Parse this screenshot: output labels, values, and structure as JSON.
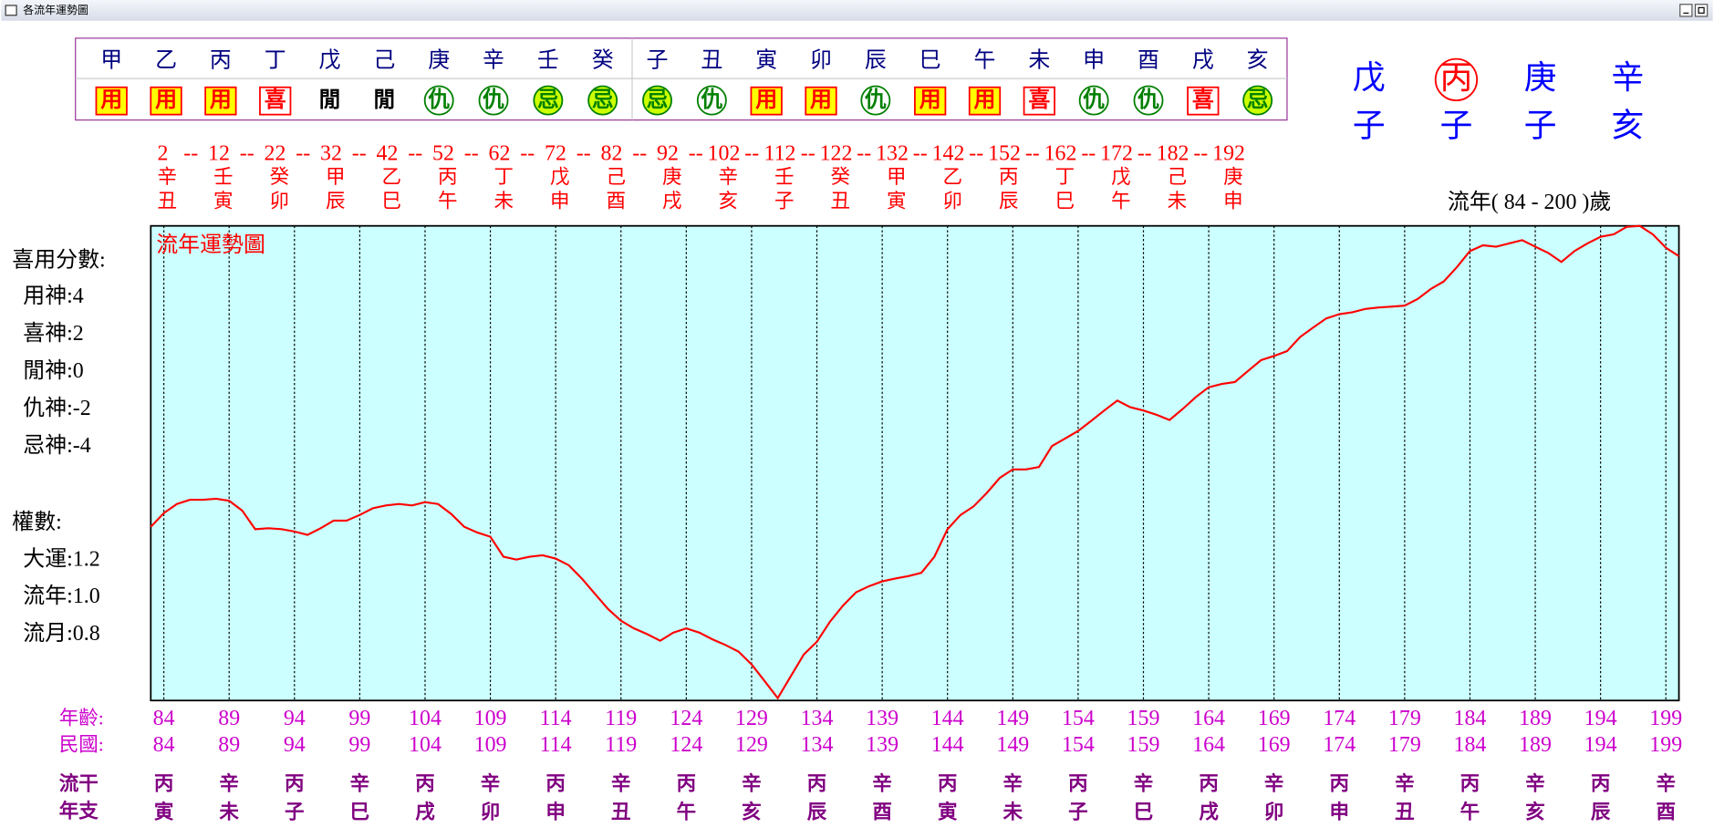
{
  "window": {
    "title": "各流年運勢圖"
  },
  "elements": {
    "items": [
      {
        "char": "甲",
        "role": "用"
      },
      {
        "char": "乙",
        "role": "用"
      },
      {
        "char": "丙",
        "role": "用"
      },
      {
        "char": "丁",
        "role": "喜"
      },
      {
        "char": "戊",
        "role": "閒"
      },
      {
        "char": "己",
        "role": "閒"
      },
      {
        "char": "庚",
        "role": "仇"
      },
      {
        "char": "辛",
        "role": "仇"
      },
      {
        "char": "壬",
        "role": "忌"
      },
      {
        "char": "癸",
        "role": "忌"
      },
      {
        "char": "子",
        "role": "忌"
      },
      {
        "char": "丑",
        "role": "仇"
      },
      {
        "char": "寅",
        "role": "用"
      },
      {
        "char": "卯",
        "role": "用"
      },
      {
        "char": "辰",
        "role": "仇"
      },
      {
        "char": "巳",
        "role": "用"
      },
      {
        "char": "午",
        "role": "用"
      },
      {
        "char": "未",
        "role": "喜"
      },
      {
        "char": "申",
        "role": "仇"
      },
      {
        "char": "酉",
        "role": "仇"
      },
      {
        "char": "戌",
        "role": "喜"
      },
      {
        "char": "亥",
        "role": "忌"
      }
    ],
    "role_styles": {
      "用": {
        "shape": "box",
        "fill": "#ffff00",
        "stroke": "#ff0000",
        "color": "#ff0000"
      },
      "喜": {
        "shape": "box",
        "fill": "#ffffff",
        "stroke": "#ff0000",
        "color": "#ff0000"
      },
      "閒": {
        "shape": "none",
        "fill": "none",
        "stroke": "none",
        "color": "#000000"
      },
      "仇": {
        "shape": "circle",
        "fill": "#ffffff",
        "stroke": "#008000",
        "color": "#008000"
      },
      "忌": {
        "shape": "circle",
        "fill": "#ccff00",
        "stroke": "#008000",
        "color": "#008000"
      }
    }
  },
  "pillars": {
    "stems": [
      "戊",
      "丙",
      "庚",
      "辛"
    ],
    "branches": [
      "子",
      "子",
      "子",
      "亥"
    ],
    "stem_colors": [
      "#0000ff",
      "#ff0000",
      "#0000ff",
      "#0000ff"
    ],
    "circled": [
      false,
      true,
      false,
      false
    ]
  },
  "luck": {
    "separator": "--",
    "ages": [
      2,
      12,
      22,
      32,
      42,
      52,
      62,
      72,
      82,
      92,
      102,
      112,
      122,
      132,
      142,
      152,
      162,
      172,
      182,
      192
    ],
    "stems": [
      "辛",
      "壬",
      "癸",
      "甲",
      "乙",
      "丙",
      "丁",
      "戊",
      "己",
      "庚",
      "辛",
      "壬",
      "癸",
      "甲",
      "乙",
      "丙",
      "丁",
      "戊",
      "己",
      "庚"
    ],
    "branches": [
      "丑",
      "寅",
      "卯",
      "辰",
      "巳",
      "午",
      "未",
      "申",
      "酉",
      "戌",
      "亥",
      "子",
      "丑",
      "寅",
      "卯",
      "辰",
      "巳",
      "午",
      "未",
      "申"
    ]
  },
  "flow_year_range": "流年( 84 - 200 )歲",
  "legend": {
    "score_title": "喜用分數:",
    "scores": [
      "用神:4",
      "喜神:2",
      "閒神:0",
      "仇神:-2",
      "忌神:-4"
    ],
    "weight_title": "權數:",
    "weights": [
      "大運:1.2",
      "流年:1.0",
      "流月:0.8"
    ]
  },
  "chart_data": {
    "type": "line",
    "title": "流年運勢圖",
    "x": [
      83,
      84,
      85,
      86,
      87,
      88,
      89,
      90,
      91,
      92,
      93,
      94,
      95,
      96,
      97,
      98,
      99,
      100,
      101,
      102,
      103,
      104,
      105,
      106,
      107,
      108,
      109,
      110,
      111,
      112,
      113,
      114,
      115,
      116,
      117,
      118,
      119,
      120,
      121,
      122,
      123,
      124,
      125,
      126,
      127,
      128,
      129,
      130,
      131,
      132,
      133,
      134,
      135,
      136,
      137,
      138,
      139,
      140,
      141,
      142,
      143,
      144,
      145,
      146,
      147,
      148,
      149,
      150,
      151,
      152,
      153,
      154,
      155,
      156,
      157,
      158,
      159,
      160,
      161,
      162,
      163,
      164,
      165,
      166,
      167,
      168,
      169,
      170,
      171,
      172,
      173,
      174,
      175,
      176,
      177,
      178,
      179,
      180,
      181,
      182,
      183,
      184,
      185,
      186,
      187,
      188,
      189,
      190,
      191,
      192,
      193,
      194,
      195,
      196,
      197,
      198,
      199,
      200
    ],
    "series": [
      {
        "color": "#ff0000",
        "values": [
          36.6,
          39.5,
          41.4,
          42.3,
          42.3,
          42.5,
          42.1,
          40.0,
          36.1,
          36.3,
          36.1,
          35.6,
          34.9,
          36.3,
          37.9,
          37.9,
          39.1,
          40.5,
          41.1,
          41.4,
          41.1,
          41.8,
          41.4,
          39.3,
          36.6,
          35.4,
          34.5,
          30.3,
          29.7,
          30.3,
          30.6,
          29.9,
          28.5,
          25.7,
          22.5,
          19.3,
          16.8,
          15.2,
          14.0,
          12.6,
          14.3,
          15.2,
          14.3,
          12.9,
          11.7,
          10.3,
          7.6,
          4.1,
          0.5,
          5.1,
          9.7,
          12.4,
          16.6,
          20.0,
          22.8,
          24.1,
          25.1,
          25.7,
          26.2,
          26.9,
          30.3,
          36.1,
          39.1,
          40.9,
          43.7,
          46.9,
          48.7,
          48.7,
          49.2,
          53.6,
          55.2,
          56.8,
          58.9,
          61.1,
          63.2,
          61.8,
          61.1,
          60.2,
          59.1,
          61.4,
          63.9,
          66.0,
          66.7,
          67.1,
          69.4,
          71.7,
          72.6,
          73.6,
          76.6,
          78.6,
          80.5,
          81.4,
          81.8,
          82.5,
          82.8,
          83.0,
          83.2,
          84.6,
          86.7,
          88.3,
          91.3,
          94.7,
          95.9,
          95.6,
          96.3,
          97.0,
          95.6,
          94.3,
          92.4,
          94.7,
          96.3,
          97.7,
          98.2,
          99.8,
          100,
          98.2,
          95.4,
          93.6
        ]
      }
    ],
    "xlim": [
      83,
      200
    ],
    "ylim": [
      0,
      100
    ],
    "xticks": [
      84,
      89,
      94,
      99,
      104,
      109,
      114,
      119,
      124,
      129,
      134,
      139,
      144,
      149,
      154,
      159,
      164,
      169,
      174,
      179,
      184,
      189,
      194,
      199
    ],
    "grid": true,
    "background": "#ccffff"
  },
  "axis_rows": {
    "age_label": "年齡:",
    "minguo_label": "民國:",
    "minguo": [
      84,
      89,
      94,
      99,
      104,
      109,
      114,
      119,
      124,
      129,
      134,
      139,
      144,
      149,
      154,
      159,
      164,
      169,
      174,
      179,
      184,
      189,
      194,
      199
    ],
    "stem_label": "流干",
    "branch_label": "年支",
    "stems": [
      "丙",
      "辛",
      "丙",
      "辛",
      "丙",
      "辛",
      "丙",
      "辛",
      "丙",
      "辛",
      "丙",
      "辛",
      "丙",
      "辛",
      "丙",
      "辛",
      "丙",
      "辛",
      "丙",
      "辛",
      "丙",
      "辛",
      "丙",
      "辛"
    ],
    "branches": [
      "寅",
      "未",
      "子",
      "巳",
      "戌",
      "卯",
      "申",
      "丑",
      "午",
      "亥",
      "辰",
      "酉",
      "寅",
      "未",
      "子",
      "巳",
      "戌",
      "卯",
      "申",
      "丑",
      "午",
      "亥",
      "辰",
      "酉"
    ]
  }
}
